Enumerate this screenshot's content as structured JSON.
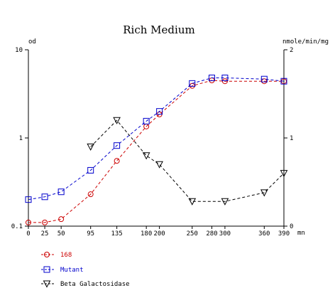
{
  "chart_data": {
    "type": "line",
    "title": "Rich Medium",
    "ylabel_left": "od",
    "ylabel_right": "nmole/min/mg",
    "x_unit": "mn",
    "x": [
      0,
      25,
      50,
      95,
      135,
      180,
      200,
      250,
      280,
      300,
      360,
      390
    ],
    "x_ticks": [
      0,
      25,
      50,
      95,
      135,
      180,
      200,
      250,
      280,
      300,
      360,
      390
    ],
    "xlim": [
      0,
      390
    ],
    "y_left": {
      "scale": "log",
      "lim": [
        0.1,
        10
      ],
      "ticks": [
        0.1,
        1,
        10
      ],
      "tick_labels": [
        "0.1",
        "1",
        "10"
      ]
    },
    "y_right": {
      "scale": "linear",
      "lim": [
        0,
        2
      ],
      "ticks": [
        0,
        1,
        2
      ],
      "tick_labels": [
        "0",
        "1",
        "2"
      ]
    },
    "series": [
      {
        "name": "168",
        "axis": "left",
        "color": "#cc0000",
        "marker": "circle",
        "x": [
          0,
          25,
          50,
          95,
          135,
          180,
          200,
          250,
          280,
          300,
          360,
          390
        ],
        "y": [
          0.11,
          0.11,
          0.12,
          0.23,
          0.55,
          1.35,
          1.85,
          3.9,
          4.5,
          4.4,
          4.4,
          4.4
        ]
      },
      {
        "name": "Mutant",
        "axis": "left",
        "color": "#0000cc",
        "marker": "square",
        "x": [
          0,
          25,
          50,
          95,
          135,
          180,
          200,
          250,
          280,
          300,
          360,
          390
        ],
        "y": [
          0.2,
          0.215,
          0.245,
          0.43,
          0.82,
          1.55,
          2.0,
          4.15,
          4.8,
          4.8,
          4.65,
          4.4
        ]
      },
      {
        "name": "Beta Galactosidase",
        "axis": "right",
        "color": "#000000",
        "marker": "triangle-down",
        "x": [
          95,
          135,
          180,
          200,
          250,
          300,
          360,
          390
        ],
        "y": [
          0.9,
          1.2,
          0.8,
          0.7,
          0.28,
          0.28,
          0.38,
          0.6
        ]
      }
    ],
    "grid": false,
    "legend_position": "bottom-left"
  }
}
